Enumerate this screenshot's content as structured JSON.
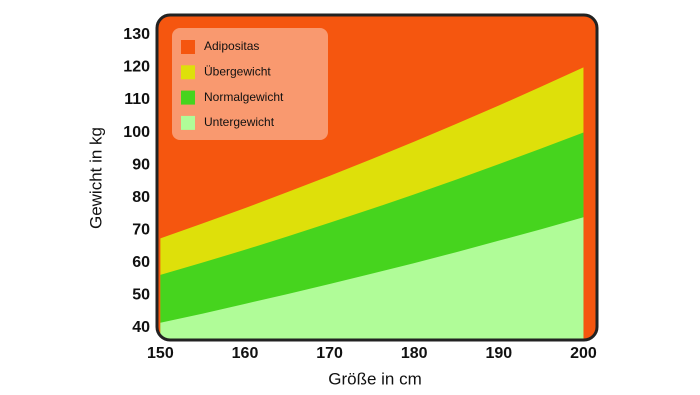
{
  "chart_data": {
    "type": "area",
    "x_label": "Größe in cm",
    "y_label": "Gewicht in kg",
    "x": [
      150,
      155,
      160,
      165,
      170,
      175,
      180,
      185,
      190,
      195,
      200
    ],
    "series": [
      {
        "name": "Adipositas",
        "color": "#f5560f"
      },
      {
        "name": "Übergewicht",
        "color": "#dee00a",
        "values": [
          67.5,
          72.1,
          76.8,
          81.7,
          86.7,
          91.9,
          97.2,
          102.7,
          108.3,
          114.1,
          120.0
        ]
      },
      {
        "name": "Normalgewicht",
        "color": "#46d41e",
        "values": [
          56.3,
          60.1,
          64.0,
          68.1,
          72.3,
          76.6,
          81.0,
          85.6,
          90.3,
          95.1,
          100.0
        ]
      },
      {
        "name": "Untergewicht",
        "color": "#b0fc98",
        "values": [
          41.6,
          44.4,
          47.4,
          50.4,
          53.5,
          56.7,
          59.9,
          63.3,
          66.8,
          70.3,
          74.0
        ]
      }
    ],
    "xlim": [
      149.6,
      201.6
    ],
    "ylim": [
      36.3,
      136.1
    ],
    "xticks": [
      150,
      160,
      170,
      180,
      190,
      200
    ],
    "yticks": [
      40,
      50,
      60,
      70,
      80,
      90,
      100,
      110,
      120,
      130
    ],
    "legend": "top-left"
  }
}
